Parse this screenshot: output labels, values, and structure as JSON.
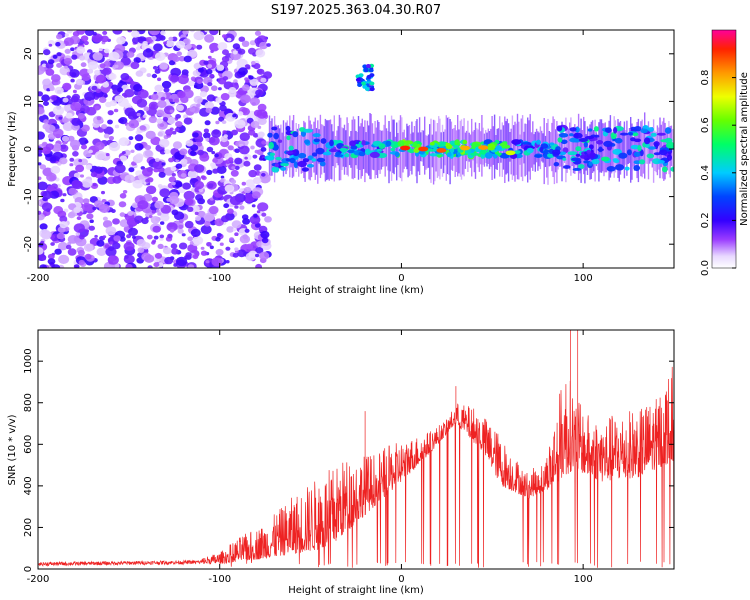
{
  "title": "S197.2025.363.04.30.R07",
  "chart_data": [
    {
      "type": "heatmap",
      "xlabel": "Height of straight line (km)",
      "ylabel": "Frequency (Hz)",
      "xlim": [
        -200,
        150
      ],
      "ylim": [
        -25,
        25
      ],
      "xticks": [
        -200,
        -100,
        0,
        100
      ],
      "xtick_labels": [
        "-200",
        "-100",
        "0",
        "100"
      ],
      "yticks": [
        -20,
        -10,
        0,
        10,
        20
      ],
      "ytick_labels": [
        "-20",
        "-10",
        "0",
        "10",
        "20"
      ],
      "colorbar": {
        "label": "Normalized spectral amplitude",
        "range": [
          0,
          1
        ],
        "ticks": [
          0,
          0.2,
          0.4,
          0.6,
          0.8
        ],
        "tick_labels": [
          "0.0",
          "0.2",
          "0.4",
          "0.6",
          "0.8"
        ]
      },
      "features": [
        {
          "description": "broadband noise region",
          "x_range": [
            -200,
            -73
          ],
          "freq_range": [
            -25,
            25
          ],
          "amplitude": 0.1
        },
        {
          "description": "main signal band",
          "x_range": [
            -73,
            150
          ],
          "center_freq_hz": 0,
          "amplitude_peak": 0.9
        },
        {
          "description": "secondary burst",
          "x_range": [
            -24,
            -16
          ],
          "freq_hz": 15,
          "amplitude_peak": 0.5
        }
      ],
      "peaks": [
        {
          "x": 2,
          "freq": 0.2,
          "amp": 0.92
        },
        {
          "x": 12,
          "freq": 0,
          "amp": 0.9
        },
        {
          "x": 22,
          "freq": -0.3,
          "amp": 0.88
        },
        {
          "x": 35,
          "freq": 0.2,
          "amp": 0.8
        },
        {
          "x": 45,
          "freq": 0.3,
          "amp": 0.82
        },
        {
          "x": 60,
          "freq": -0.8,
          "amp": 0.7
        }
      ]
    },
    {
      "type": "line",
      "xlabel": "Height of straight line (km)",
      "ylabel": "SNR (10 * v/v)",
      "xlim": [
        -200,
        150
      ],
      "ylim": [
        0,
        1150
      ],
      "xticks": [
        -200,
        -100,
        0,
        100
      ],
      "xtick_labels": [
        "-200",
        "-100",
        "0",
        "100"
      ],
      "yticks": [
        0,
        200,
        400,
        600,
        800,
        1000
      ],
      "ytick_labels": [
        "0",
        "200",
        "400",
        "600",
        "800",
        "1000"
      ],
      "series_color": "#ee2222",
      "envelope": [
        {
          "x": -200,
          "y": 25
        },
        {
          "x": -150,
          "y": 28
        },
        {
          "x": -120,
          "y": 30
        },
        {
          "x": -100,
          "y": 80
        },
        {
          "x": -90,
          "y": 150
        },
        {
          "x": -75,
          "y": 220
        },
        {
          "x": -60,
          "y": 350
        },
        {
          "x": -45,
          "y": 450
        },
        {
          "x": -30,
          "y": 540
        },
        {
          "x": -15,
          "y": 560
        },
        {
          "x": 0,
          "y": 620
        },
        {
          "x": 15,
          "y": 660
        },
        {
          "x": 25,
          "y": 720
        },
        {
          "x": 30,
          "y": 800
        },
        {
          "x": 40,
          "y": 780
        },
        {
          "x": 50,
          "y": 700
        },
        {
          "x": 60,
          "y": 570
        },
        {
          "x": 70,
          "y": 460
        },
        {
          "x": 80,
          "y": 560
        },
        {
          "x": 90,
          "y": 980
        },
        {
          "x": 100,
          "y": 760
        },
        {
          "x": 110,
          "y": 720
        },
        {
          "x": 120,
          "y": 760
        },
        {
          "x": 130,
          "y": 780
        },
        {
          "x": 140,
          "y": 820
        },
        {
          "x": 150,
          "y": 1000
        }
      ],
      "baseline": [
        {
          "x": -200,
          "y": 15
        },
        {
          "x": -100,
          "y": 25
        },
        {
          "x": -75,
          "y": 50
        },
        {
          "x": -40,
          "y": 100
        },
        {
          "x": 0,
          "y": 420
        },
        {
          "x": 15,
          "y": 550
        },
        {
          "x": 30,
          "y": 700
        },
        {
          "x": 45,
          "y": 560
        },
        {
          "x": 55,
          "y": 400
        },
        {
          "x": 70,
          "y": 340
        },
        {
          "x": 80,
          "y": 380
        },
        {
          "x": 95,
          "y": 480
        },
        {
          "x": 110,
          "y": 420
        },
        {
          "x": 130,
          "y": 440
        },
        {
          "x": 150,
          "y": 520
        }
      ]
    }
  ]
}
